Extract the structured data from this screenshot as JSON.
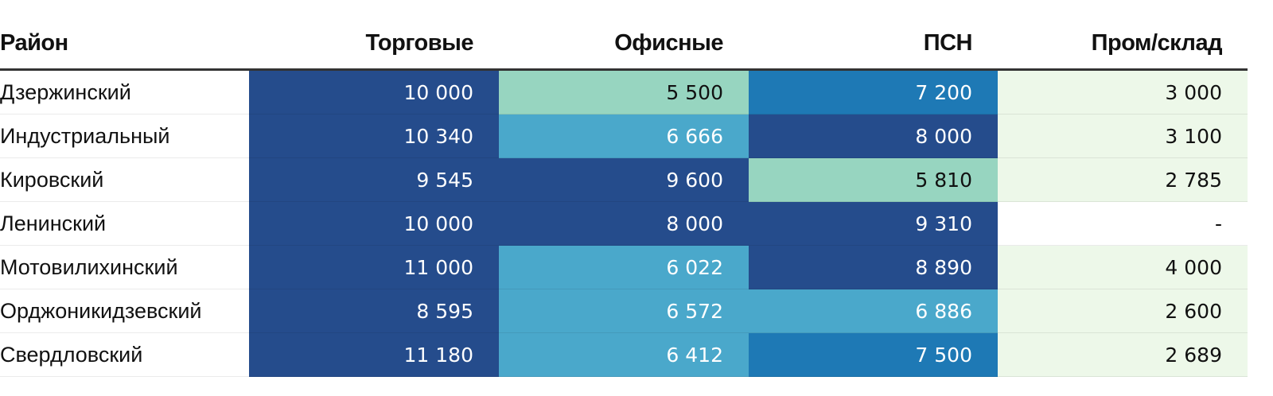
{
  "chart_data": {
    "type": "heatmap",
    "columns": [
      "Район",
      "Торговые",
      "Офисные",
      "ПСН",
      "Пром/склад"
    ],
    "rows": [
      {
        "label": "Дзержинский",
        "values": [
          10000,
          5500,
          7200,
          3000
        ],
        "display": [
          "10 000",
          "5 500",
          "7 200",
          "3 000"
        ]
      },
      {
        "label": "Индустриальный",
        "values": [
          10340,
          6666,
          8000,
          3100
        ],
        "display": [
          "10 340",
          "6 666",
          "8 000",
          "3 100"
        ]
      },
      {
        "label": "Кировский",
        "values": [
          9545,
          9600,
          5810,
          2785
        ],
        "display": [
          "9 545",
          "9 600",
          "5 810",
          "2 785"
        ]
      },
      {
        "label": "Ленинский",
        "values": [
          10000,
          8000,
          9310,
          null
        ],
        "display": [
          "10 000",
          "8 000",
          "9 310",
          "-"
        ]
      },
      {
        "label": "Мотовилихинский",
        "values": [
          11000,
          6022,
          8890,
          4000
        ],
        "display": [
          "11 000",
          "6 022",
          "8 890",
          "4 000"
        ]
      },
      {
        "label": "Орджоникидзевский",
        "values": [
          8595,
          6572,
          6886,
          2600
        ],
        "display": [
          "8 595",
          "6 572",
          "6 886",
          "2 600"
        ]
      },
      {
        "label": "Свердловский",
        "values": [
          11180,
          6412,
          7500,
          2689
        ],
        "display": [
          "11 180",
          "6 412",
          "7 500",
          "2 689"
        ]
      }
    ],
    "color_scale": {
      "thresholds": [
        4500,
        6000,
        7000,
        7900,
        9500
      ],
      "colors": [
        "#edf8e9",
        "#97d5c0",
        "#4aa8cb",
        "#1e79b5",
        "#254c8c"
      ],
      "text_colors": [
        "#111111",
        "#111111",
        "#ffffff",
        "#ffffff",
        "#ffffff"
      ],
      "missing_color": "#ffffff"
    }
  }
}
